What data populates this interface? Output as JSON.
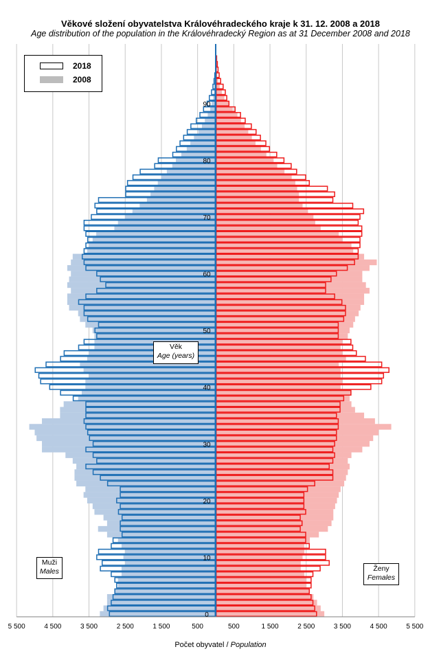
{
  "title_cz": "Věkové složení obyvatelstva  Královéhradeckého kraje k 31. 12. 2008 a 2018",
  "title_en": "Age distribution of the population  in the Královéhradecký  Region  as at 31 December 2008  and 2018",
  "axis": {
    "xlabel_cz": "Počet obyvatel",
    "xlabel_sep": " / ",
    "xlabel_en": "Population",
    "age_label_cz": "Věk",
    "age_label_en": "Age (years)",
    "males_cz": "Muži",
    "males_en": "Males",
    "females_cz": "Ženy",
    "females_en": "Females"
  },
  "legend": {
    "outline": "2018",
    "filled": "2008"
  },
  "colors": {
    "male_2018": "#1f6fb4",
    "male_2008": "#b8cce4",
    "female_2018": "#ee1c1c",
    "female_2008": "#f7b6b4",
    "grid": "#c8c8c8",
    "axis": "#1f6fb4"
  },
  "chart_data": {
    "type": "population pyramid",
    "x_ticks_left": [
      "5 500",
      "4 500",
      "3 500",
      "2 500",
      "1 500",
      "500"
    ],
    "x_ticks_right": [
      "500",
      "1 500",
      "2 500",
      "3 500",
      "4 500",
      "5 500"
    ],
    "y_ticks": [
      "0",
      "10",
      "20",
      "30",
      "40",
      "50",
      "60",
      "70",
      "80",
      "90"
    ],
    "xlim": [
      0,
      5500
    ],
    "ages": [
      0,
      1,
      2,
      3,
      4,
      5,
      6,
      7,
      8,
      9,
      10,
      11,
      12,
      13,
      14,
      15,
      16,
      17,
      18,
      19,
      20,
      21,
      22,
      23,
      24,
      25,
      26,
      27,
      28,
      29,
      30,
      31,
      32,
      33,
      34,
      35,
      36,
      37,
      38,
      39,
      40,
      41,
      42,
      43,
      44,
      45,
      46,
      47,
      48,
      49,
      50,
      51,
      52,
      53,
      54,
      55,
      56,
      57,
      58,
      59,
      60,
      61,
      62,
      63,
      64,
      65,
      66,
      67,
      68,
      69,
      70,
      71,
      72,
      73,
      74,
      75,
      76,
      77,
      78,
      79,
      80,
      81,
      82,
      83,
      84,
      85,
      86,
      87,
      88,
      89,
      90,
      91,
      92,
      93,
      94,
      95,
      96,
      97,
      98,
      99,
      100
    ],
    "series": [
      {
        "name": "2018",
        "sex": "male",
        "values": [
          2950,
          3000,
          2900,
          2850,
          2800,
          2750,
          2800,
          2900,
          3200,
          3150,
          3300,
          3250,
          2900,
          2850,
          2600,
          2650,
          2650,
          2600,
          2700,
          2650,
          2750,
          2650,
          2650,
          3000,
          3200,
          3400,
          3600,
          3300,
          3400,
          3600,
          3400,
          3500,
          3550,
          3600,
          3650,
          3600,
          3600,
          3600,
          3950,
          4300,
          4600,
          4850,
          4900,
          5000,
          4700,
          4300,
          4200,
          3800,
          3650,
          3300,
          3350,
          3250,
          3550,
          3650,
          3650,
          3800,
          3600,
          3300,
          3050,
          3200,
          3300,
          3600,
          3650,
          3700,
          3650,
          3600,
          3550,
          3600,
          3650,
          3650,
          3450,
          3300,
          3350,
          3250,
          2500,
          2500,
          2450,
          2300,
          2100,
          1700,
          1600,
          1200,
          1100,
          1000,
          900,
          800,
          700,
          550,
          450,
          350,
          250,
          190,
          130,
          90,
          60,
          40,
          20,
          12,
          6,
          3,
          2
        ]
      },
      {
        "name": "2008",
        "sex": "male",
        "values": [
          3200,
          3100,
          3000,
          3000,
          2800,
          2700,
          2700,
          2600,
          2600,
          2500,
          2550,
          2500,
          2600,
          2700,
          3000,
          3250,
          3000,
          3100,
          3350,
          3400,
          3550,
          3650,
          3600,
          3850,
          3900,
          3900,
          3850,
          3950,
          4150,
          4800,
          4800,
          4950,
          5000,
          5150,
          4800,
          4300,
          4300,
          4200,
          3800,
          3700,
          3600,
          3600,
          3500,
          3650,
          3750,
          3550,
          3500,
          3350,
          3350,
          3350,
          3400,
          3600,
          3750,
          3800,
          4050,
          4100,
          4100,
          4000,
          4100,
          4050,
          4000,
          4100,
          4000,
          3950,
          3550,
          3500,
          3400,
          3300,
          2800,
          2700,
          2500,
          2300,
          2100,
          1900,
          1800,
          1700,
          1600,
          1500,
          1350,
          1200,
          1100,
          950,
          800,
          700,
          600,
          480,
          380,
          300,
          220,
          150,
          110,
          70,
          45,
          25,
          12,
          6,
          3,
          2,
          1,
          1,
          0
        ]
      },
      {
        "name": "2018",
        "sex": "female",
        "values": [
          2800,
          2750,
          2700,
          2650,
          2600,
          2650,
          2650,
          2700,
          2900,
          3150,
          3050,
          3050,
          2600,
          2500,
          2500,
          2350,
          2400,
          2350,
          2500,
          2450,
          2450,
          2450,
          2550,
          2750,
          3250,
          3250,
          3150,
          3250,
          3300,
          3250,
          3300,
          3350,
          3350,
          3400,
          3400,
          3350,
          3450,
          3450,
          3550,
          3750,
          4300,
          4600,
          4650,
          4800,
          4600,
          4150,
          3900,
          3800,
          3750,
          3400,
          3400,
          3400,
          3550,
          3600,
          3600,
          3500,
          3300,
          3050,
          3050,
          3200,
          3350,
          3650,
          3850,
          3950,
          3950,
          4000,
          4000,
          4050,
          4050,
          3950,
          4000,
          4100,
          3800,
          3250,
          3300,
          3100,
          2600,
          2500,
          2250,
          2100,
          1900,
          1700,
          1500,
          1400,
          1250,
          1130,
          1000,
          830,
          700,
          550,
          380,
          320,
          280,
          220,
          150,
          110,
          80,
          60,
          40,
          20,
          10
        ]
      },
      {
        "name": "2008",
        "sex": "female",
        "values": [
          3000,
          2900,
          2800,
          2700,
          2600,
          2500,
          2500,
          2450,
          2350,
          2350,
          2400,
          2450,
          2450,
          2600,
          2850,
          3100,
          3200,
          3250,
          3250,
          3300,
          3350,
          3400,
          3450,
          3550,
          3600,
          3650,
          3700,
          3650,
          3750,
          4050,
          4250,
          4350,
          4500,
          4850,
          4400,
          4100,
          3850,
          3750,
          3700,
          3750,
          3450,
          3500,
          3450,
          3450,
          3400,
          3600,
          3500,
          3450,
          3500,
          3650,
          3700,
          3800,
          3850,
          3950,
          4000,
          4100,
          4100,
          4250,
          4150,
          4050,
          4050,
          4250,
          4450,
          4100,
          3800,
          3750,
          3500,
          3400,
          2900,
          2750,
          2700,
          2550,
          2400,
          2300,
          2300,
          2250,
          2200,
          2100,
          1900,
          1700,
          1600,
          1400,
          1250,
          1100,
          1000,
          900,
          800,
          700,
          600,
          470,
          350,
          240,
          170,
          110,
          70,
          40,
          20,
          10,
          5,
          2,
          1
        ]
      }
    ]
  }
}
